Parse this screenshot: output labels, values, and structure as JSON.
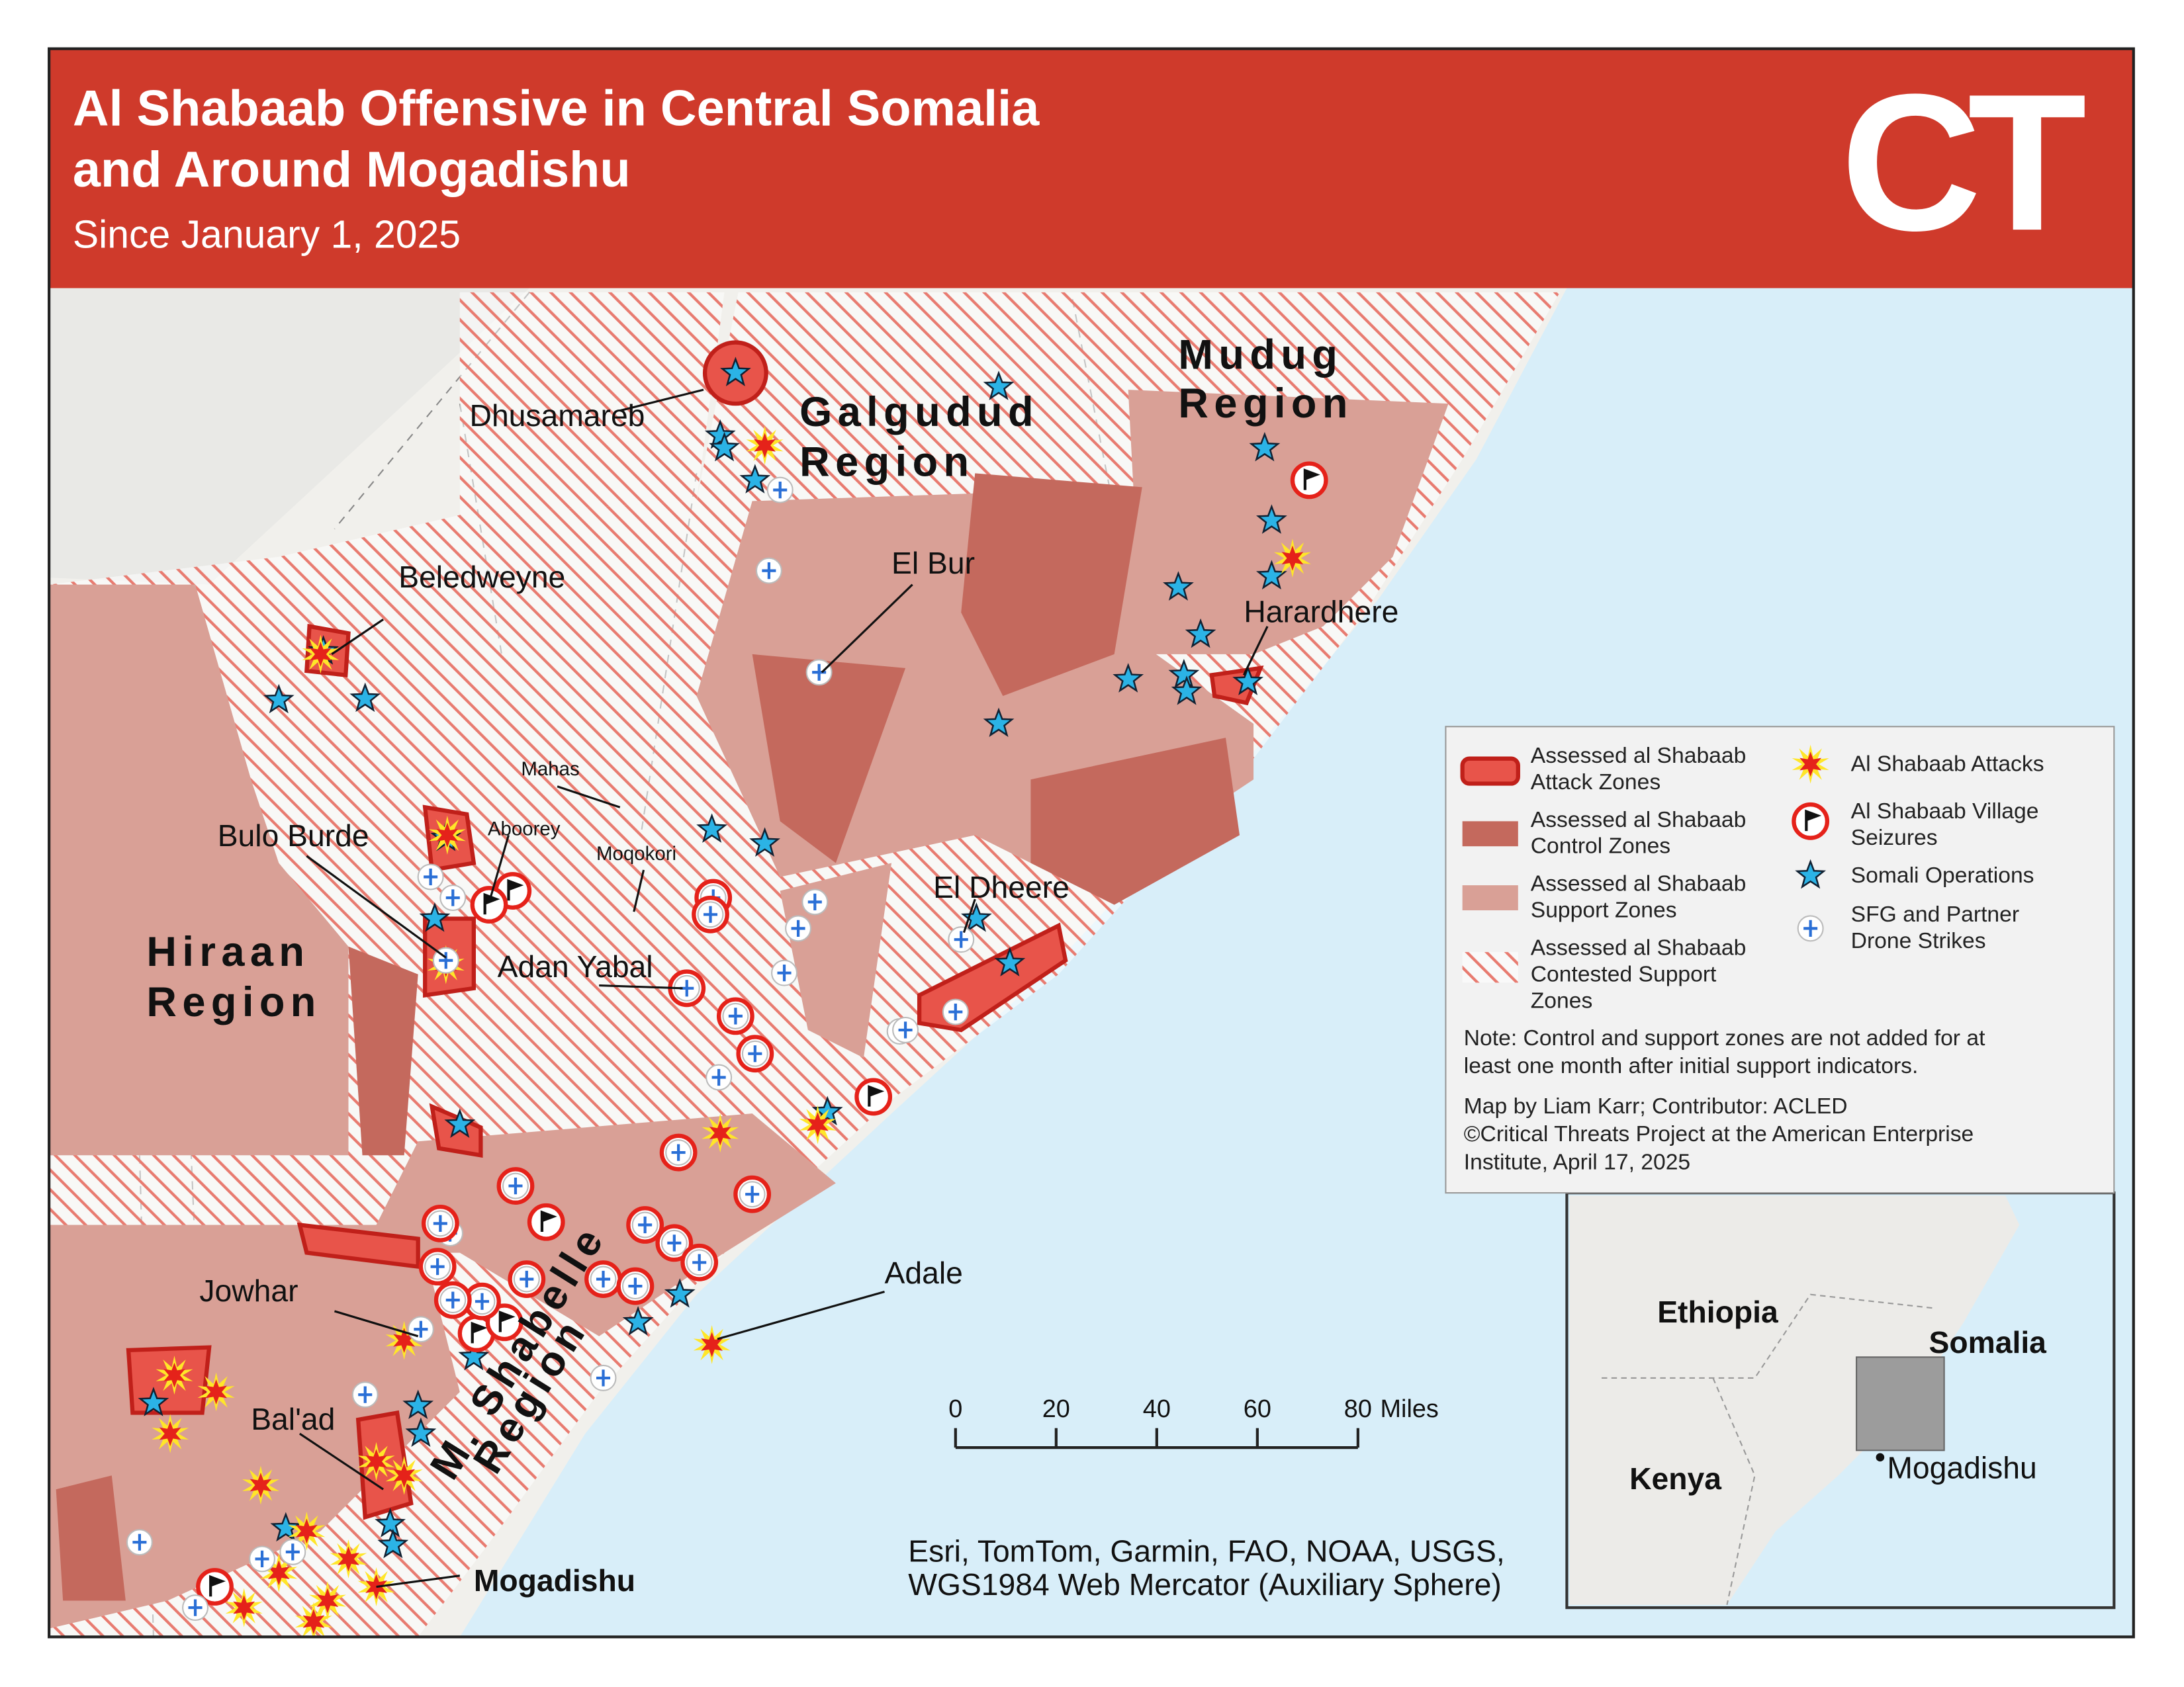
{
  "header": {
    "title_lines": [
      "Al Shabaab Offensive in Central Somalia",
      "and Around Mogadishu"
    ],
    "subtitle": "Since January 1, 2025",
    "logo": "CT"
  },
  "map": {
    "places": [
      "Dhusamareb",
      "Beledweyne",
      "El Bur",
      "Harardhere",
      "Mahas",
      "Aboorey",
      "Moqokori",
      "Bulo Burde",
      "Adan Yabal",
      "El Dheere",
      "Jowhar",
      "Bal'ad",
      "Adale",
      "Mogadishu"
    ],
    "regions": [
      [
        "Galgudud",
        "Region"
      ],
      [
        "Mudug",
        "Region"
      ],
      [
        "Hiraan",
        "Region"
      ],
      [
        "M. Shabelle",
        "Region"
      ]
    ]
  },
  "legend": {
    "items": [
      [
        "Assessed al Shabaab",
        "Attack Zones"
      ],
      [
        "Assessed al Shabaab",
        "Control Zones"
      ],
      [
        "Assessed al Shabaab",
        "Support Zones"
      ],
      [
        "Assessed al Shabaab",
        "Contested Support",
        "Zones"
      ],
      [
        "Al Shabaab Attacks"
      ],
      [
        "Al Shabaab Village",
        "Seizures"
      ],
      [
        "Somali Operations"
      ],
      [
        "SFG and Partner",
        "Drone Strikes"
      ]
    ],
    "note_lines": [
      "Note: Control and support zones are not added for at",
      "least one month after initial support indicators."
    ],
    "credit_lines": [
      "Map by Liam Karr; Contributor: ACLED",
      "©Critical Threats Project at the American Enterprise",
      "Institute, April 17, 2025"
    ]
  },
  "scale_bar": {
    "ticks": [
      0,
      20,
      40,
      60,
      80
    ],
    "unit": "Miles"
  },
  "attribution_lines": [
    "Esri, TomTom, Garmin, FAO, NOAA, USGS,",
    "WGS1984 Web Mercator (Auxiliary Sphere)"
  ],
  "inset": {
    "labels": [
      "Ethiopia",
      "Somalia",
      "Kenya",
      "Mogadishu"
    ]
  }
}
